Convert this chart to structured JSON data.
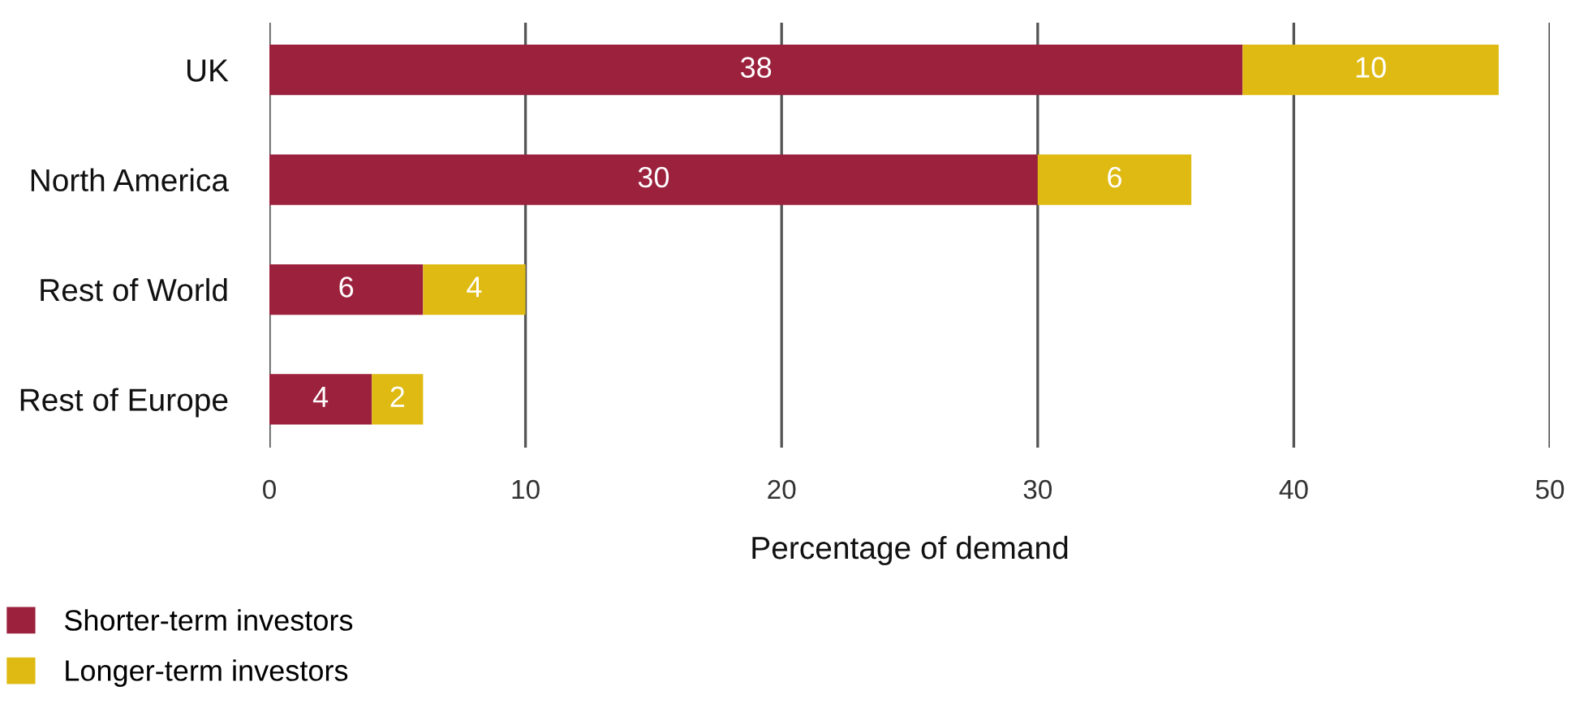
{
  "chart_data": {
    "type": "bar",
    "orientation": "horizontal",
    "stacked": true,
    "categories": [
      "UK",
      "North America",
      "Rest of World",
      "Rest of Europe"
    ],
    "series": [
      {
        "name": "Shorter-term investors",
        "color": "#9b213d",
        "values": [
          38,
          30,
          6,
          4
        ]
      },
      {
        "name": "Longer-term investors",
        "color": "#dfba12",
        "values": [
          10,
          6,
          4,
          2
        ]
      }
    ],
    "xlabel": "Percentage of demand",
    "xlim": [
      0,
      50
    ],
    "xticks": [
      0,
      10,
      20,
      30,
      40,
      50
    ],
    "grid": "x",
    "legend": "bottom left",
    "data_labels": true
  }
}
